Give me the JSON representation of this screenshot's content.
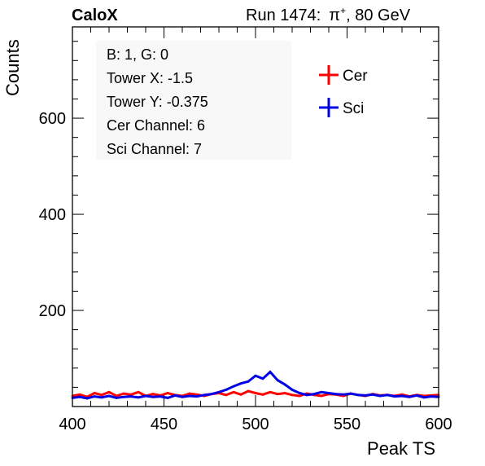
{
  "header": {
    "experiment": "CaloX",
    "run_prefix": "Run 1474:",
    "particle": "π",
    "charge": "+",
    "energy": ", 80 GeV"
  },
  "stats_box": {
    "lines": [
      "B: 1, G: 0",
      "Tower X: -1.5",
      "Tower Y: -0.375",
      "Cer Channel: 6",
      "Sci Channel: 7"
    ]
  },
  "colors": {
    "cer": "#ff0000",
    "sci": "#0000e6",
    "axis": "#000000"
  },
  "chart_data": {
    "type": "line",
    "title": "",
    "xlabel": "Peak TS",
    "ylabel": "Counts",
    "xlim": [
      400,
      600
    ],
    "ylim": [
      0,
      790
    ],
    "xticks": [
      400,
      450,
      500,
      550,
      600
    ],
    "yticks": [
      200,
      400,
      600
    ],
    "legend": {
      "placement": "top-right",
      "entries": [
        "Cer",
        "Sci"
      ]
    },
    "series": [
      {
        "name": "Cer",
        "color": "#ff0000",
        "x": [
          400,
          404,
          408,
          412,
          416,
          420,
          424,
          428,
          432,
          436,
          440,
          444,
          448,
          452,
          456,
          460,
          464,
          468,
          472,
          476,
          480,
          484,
          488,
          492,
          496,
          500,
          504,
          508,
          512,
          516,
          520,
          524,
          528,
          532,
          536,
          540,
          544,
          548,
          552,
          556,
          560,
          564,
          568,
          572,
          576,
          580,
          584,
          588,
          592,
          596,
          600
        ],
        "values": [
          22,
          25,
          20,
          28,
          24,
          30,
          22,
          27,
          25,
          30,
          22,
          26,
          23,
          28,
          24,
          22,
          27,
          25,
          22,
          26,
          28,
          24,
          30,
          25,
          32,
          28,
          25,
          30,
          26,
          28,
          24,
          22,
          27,
          24,
          22,
          26,
          25,
          22,
          27,
          24,
          22,
          26,
          23,
          24,
          22,
          25,
          21,
          24,
          22,
          23,
          24
        ]
      },
      {
        "name": "Sci",
        "color": "#0000e6",
        "x": [
          400,
          404,
          408,
          412,
          416,
          420,
          424,
          428,
          432,
          436,
          440,
          444,
          448,
          452,
          456,
          460,
          464,
          468,
          472,
          476,
          480,
          484,
          488,
          492,
          496,
          500,
          504,
          508,
          512,
          516,
          520,
          524,
          528,
          532,
          536,
          540,
          544,
          548,
          552,
          556,
          560,
          564,
          568,
          572,
          576,
          580,
          584,
          588,
          592,
          596,
          600
        ],
        "values": [
          18,
          20,
          17,
          21,
          19,
          22,
          18,
          20,
          21,
          19,
          22,
          20,
          21,
          18,
          23,
          20,
          22,
          21,
          24,
          26,
          30,
          35,
          42,
          48,
          52,
          64,
          58,
          72,
          55,
          46,
          35,
          28,
          24,
          26,
          30,
          28,
          26,
          25,
          27,
          24,
          23,
          25,
          22,
          24,
          21,
          22,
          20,
          23,
          19,
          21,
          20
        ]
      }
    ]
  }
}
